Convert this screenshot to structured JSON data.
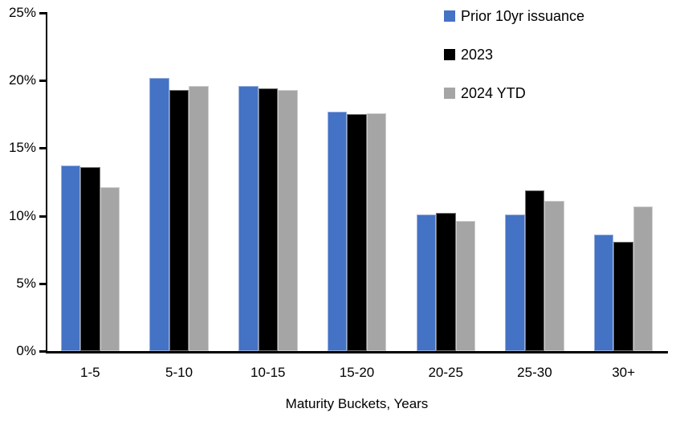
{
  "chart_data": {
    "type": "bar",
    "title": "",
    "xlabel": "Maturity Buckets, Years",
    "ylabel": "",
    "categories": [
      "1-5",
      "5-10",
      "10-15",
      "15-20",
      "20-25",
      "25-30",
      "30+"
    ],
    "series": [
      {
        "name": "Prior 10yr issuance",
        "color": "#4472C4",
        "values": [
          13.7,
          20.2,
          19.6,
          17.7,
          10.1,
          10.1,
          8.6
        ]
      },
      {
        "name": "2023",
        "color": "#000000",
        "values": [
          13.6,
          19.3,
          19.4,
          17.5,
          10.2,
          11.9,
          8.1
        ]
      },
      {
        "name": "2024 YTD",
        "color": "#A5A5A5",
        "values": [
          12.1,
          19.6,
          19.3,
          17.6,
          9.6,
          11.1,
          10.7
        ]
      }
    ],
    "ylim": [
      0,
      25
    ],
    "ytick_step": 5,
    "ytick_labels": [
      "0%",
      "5%",
      "10%",
      "15%",
      "20%",
      "25%"
    ],
    "legend_position": "top-right",
    "grid": false,
    "axis_color": "#000000",
    "background_color": "#FFFFFF"
  }
}
